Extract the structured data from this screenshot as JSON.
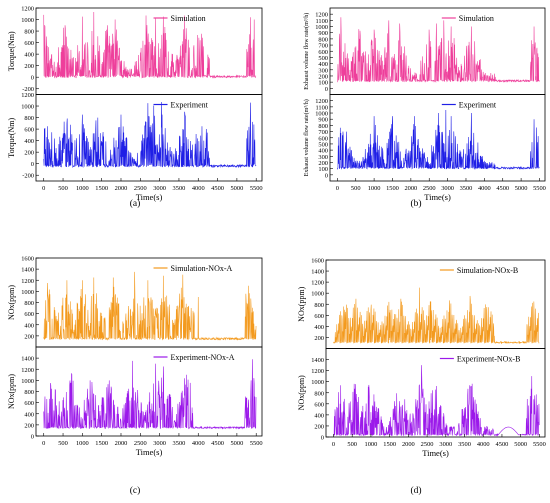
{
  "figure": {
    "panels": [
      "(a)",
      "(b)",
      "(c)",
      "(d)"
    ]
  },
  "chart_data": [
    {
      "id": "a",
      "type": "line",
      "panel_label": "(a)",
      "xlabel": "Time(s)",
      "xlim": [
        -200,
        5650
      ],
      "xticks": [
        0,
        500,
        1000,
        1500,
        2000,
        2500,
        3000,
        3500,
        4000,
        4500,
        5000,
        5500
      ],
      "subplots": [
        {
          "name": "Simulation",
          "ylabel": "Torque(Nm)",
          "color": "#ee3f9b",
          "ylim": [
            -300,
            1200
          ],
          "yticks": [
            -200,
            0,
            200,
            400,
            600,
            800,
            1000,
            1200
          ],
          "baseline": 10,
          "noise": 40,
          "baseline_note": "idle near 0 Nm",
          "idle_segments": [
            [
              4300,
              5250
            ],
            [
              5480,
              5520
            ]
          ],
          "peaks": [
            {
              "x": 0,
              "y": 1080
            },
            {
              "x": 550,
              "y": 900
            },
            {
              "x": 1000,
              "y": 1050
            },
            {
              "x": 1300,
              "y": 1130
            },
            {
              "x": 1650,
              "y": 900
            },
            {
              "x": 1850,
              "y": 1000
            },
            {
              "x": 2650,
              "y": 1070
            },
            {
              "x": 2900,
              "y": 1030
            },
            {
              "x": 3100,
              "y": 1050
            },
            {
              "x": 3650,
              "y": 1070
            },
            {
              "x": 4050,
              "y": 640
            },
            {
              "x": 5350,
              "y": 1040
            },
            {
              "x": 5450,
              "y": 1000
            }
          ]
        },
        {
          "name": "Experiment",
          "ylabel": "Torque(Nm)",
          "color": "#1f1fe6",
          "ylim": [
            -300,
            1200
          ],
          "yticks": [
            -200,
            0,
            200,
            400,
            600,
            800,
            1000,
            1200
          ],
          "baseline": -40,
          "noise": 40,
          "idle_segments": [
            [
              4300,
              5250
            ],
            [
              5480,
              5520
            ]
          ],
          "peaks": [
            {
              "x": 100,
              "y": 650
            },
            {
              "x": 600,
              "y": 700
            },
            {
              "x": 1000,
              "y": 850
            },
            {
              "x": 1400,
              "y": 800
            },
            {
              "x": 2000,
              "y": 850
            },
            {
              "x": 2700,
              "y": 1050
            },
            {
              "x": 2850,
              "y": 1010
            },
            {
              "x": 3050,
              "y": 1070
            },
            {
              "x": 3650,
              "y": 900
            },
            {
              "x": 4100,
              "y": 650
            },
            {
              "x": 5350,
              "y": 1060
            }
          ]
        }
      ]
    },
    {
      "id": "b",
      "type": "line",
      "panel_label": "(b)",
      "xlabel": "Time(s)",
      "xlim": [
        -200,
        5650
      ],
      "xticks": [
        0,
        500,
        1000,
        1500,
        2000,
        2500,
        3000,
        3500,
        4000,
        4500,
        5000,
        5500
      ],
      "subplots": [
        {
          "name": "Simulation",
          "ylabel": "Exhaust volume flow rate(m³/h)",
          "color": "#ee3f9b",
          "ylim": [
            -100,
            1300
          ],
          "yticks": [
            0,
            100,
            200,
            300,
            400,
            500,
            600,
            700,
            800,
            900,
            1000,
            1100,
            1200
          ],
          "baseline": 120,
          "noise": 30,
          "idle_segments": [
            [
              4300,
              5250
            ]
          ],
          "peaks": [
            {
              "x": 100,
              "y": 1150
            },
            {
              "x": 600,
              "y": 800
            },
            {
              "x": 1000,
              "y": 950
            },
            {
              "x": 1400,
              "y": 1100
            },
            {
              "x": 1700,
              "y": 1050
            },
            {
              "x": 2500,
              "y": 950
            },
            {
              "x": 2700,
              "y": 1050
            },
            {
              "x": 2900,
              "y": 1100
            },
            {
              "x": 3100,
              "y": 1000
            },
            {
              "x": 3650,
              "y": 1000
            },
            {
              "x": 5350,
              "y": 1000
            }
          ]
        },
        {
          "name": "Experiment",
          "ylabel": "Exhaust volume flow rate(m³/h)",
          "color": "#1f1fe6",
          "ylim": [
            -100,
            1300
          ],
          "yticks": [
            0,
            100,
            200,
            300,
            400,
            500,
            600,
            700,
            800,
            900,
            1000,
            1100,
            1200
          ],
          "baseline": 110,
          "noise": 30,
          "idle_segments": [
            [
              4300,
              5250
            ]
          ],
          "peaks": [
            {
              "x": 150,
              "y": 700
            },
            {
              "x": 1000,
              "y": 950
            },
            {
              "x": 1500,
              "y": 950
            },
            {
              "x": 2100,
              "y": 950
            },
            {
              "x": 2750,
              "y": 1000
            },
            {
              "x": 2950,
              "y": 1050
            },
            {
              "x": 3100,
              "y": 950
            },
            {
              "x": 3650,
              "y": 1000
            },
            {
              "x": 5350,
              "y": 900
            }
          ]
        }
      ]
    },
    {
      "id": "c",
      "type": "line",
      "panel_label": "(c)",
      "xlabel": "Time(s)",
      "xlim": [
        -200,
        5650
      ],
      "xticks": [
        0,
        500,
        1000,
        1500,
        2000,
        2500,
        3000,
        3500,
        4000,
        4500,
        5000,
        5500
      ],
      "subplots": [
        {
          "name": "Simulation-NOx-A",
          "ylabel": "NOx(ppm)",
          "color": "#f39a1e",
          "ylim": [
            0,
            1600
          ],
          "yticks": [
            200,
            400,
            600,
            800,
            1000,
            1200,
            1400,
            1600
          ],
          "baseline": 150,
          "noise": 40,
          "idle_segments": [
            [
              3900,
              5200
            ]
          ],
          "peaks": [
            {
              "x": 100,
              "y": 1150
            },
            {
              "x": 600,
              "y": 1200
            },
            {
              "x": 1000,
              "y": 1200
            },
            {
              "x": 1300,
              "y": 1250
            },
            {
              "x": 1800,
              "y": 1250
            },
            {
              "x": 2350,
              "y": 1350
            },
            {
              "x": 2700,
              "y": 1200
            },
            {
              "x": 3100,
              "y": 1280
            },
            {
              "x": 3600,
              "y": 1300
            },
            {
              "x": 4000,
              "y": 900
            },
            {
              "x": 5300,
              "y": 1100
            }
          ]
        },
        {
          "name": "Experiment-NOx-A",
          "ylabel": "NOx(ppm)",
          "color": "#9b19ea",
          "ylim": [
            0,
            1600
          ],
          "yticks": [
            0,
            200,
            400,
            600,
            800,
            1000,
            1200,
            1400
          ],
          "baseline": 150,
          "noise": 30,
          "idle_segments": [
            [
              3900,
              5200
            ]
          ],
          "peaks": [
            {
              "x": 200,
              "y": 850
            },
            {
              "x": 700,
              "y": 950
            },
            {
              "x": 1200,
              "y": 1000
            },
            {
              "x": 1700,
              "y": 1000
            },
            {
              "x": 2300,
              "y": 1350
            },
            {
              "x": 2900,
              "y": 1300
            },
            {
              "x": 3100,
              "y": 1250
            },
            {
              "x": 3700,
              "y": 1100
            },
            {
              "x": 5400,
              "y": 1380
            }
          ]
        }
      ]
    },
    {
      "id": "d",
      "type": "line",
      "panel_label": "(d)",
      "xlabel": "Time(s)",
      "xlim": [
        -200,
        5650
      ],
      "xticks": [
        0,
        500,
        1000,
        1500,
        2000,
        2500,
        3000,
        3500,
        4000,
        4500,
        5000,
        5500
      ],
      "subplots": [
        {
          "name": "Simulation-NOx-B",
          "ylabel": "NOx(ppm)",
          "color": "#f39a1e",
          "ylim": [
            0,
            1600
          ],
          "yticks": [
            200,
            400,
            600,
            800,
            1000,
            1200,
            1400,
            1600
          ],
          "baseline": 110,
          "noise": 30,
          "idle_segments": [
            [
              4300,
              5150
            ]
          ],
          "peaks": [
            {
              "x": 300,
              "y": 700
            },
            {
              "x": 600,
              "y": 900
            },
            {
              "x": 1000,
              "y": 700
            },
            {
              "x": 1500,
              "y": 650
            },
            {
              "x": 1800,
              "y": 900
            },
            {
              "x": 2300,
              "y": 1100
            },
            {
              "x": 2600,
              "y": 850
            },
            {
              "x": 3100,
              "y": 700
            },
            {
              "x": 3650,
              "y": 950
            },
            {
              "x": 4100,
              "y": 750
            },
            {
              "x": 5350,
              "y": 850
            }
          ]
        },
        {
          "name": "Experiment-NOx-B",
          "ylabel": "NOx(ppm)",
          "color": "#9b19ea",
          "ylim": [
            0,
            1600
          ],
          "yticks": [
            0,
            200,
            400,
            600,
            800,
            1000,
            1200,
            1400
          ],
          "baseline": 40,
          "noise": 25,
          "bump": {
            "from": 4400,
            "to": 5050,
            "level": 140
          },
          "idle_segments": [
            [
              4300,
              5150
            ]
          ],
          "peaks": [
            {
              "x": 150,
              "y": 350
            },
            {
              "x": 600,
              "y": 650
            },
            {
              "x": 1000,
              "y": 450
            },
            {
              "x": 1800,
              "y": 550
            },
            {
              "x": 2350,
              "y": 1300
            },
            {
              "x": 2700,
              "y": 500
            },
            {
              "x": 3650,
              "y": 900
            },
            {
              "x": 5300,
              "y": 1100
            }
          ]
        }
      ]
    }
  ]
}
